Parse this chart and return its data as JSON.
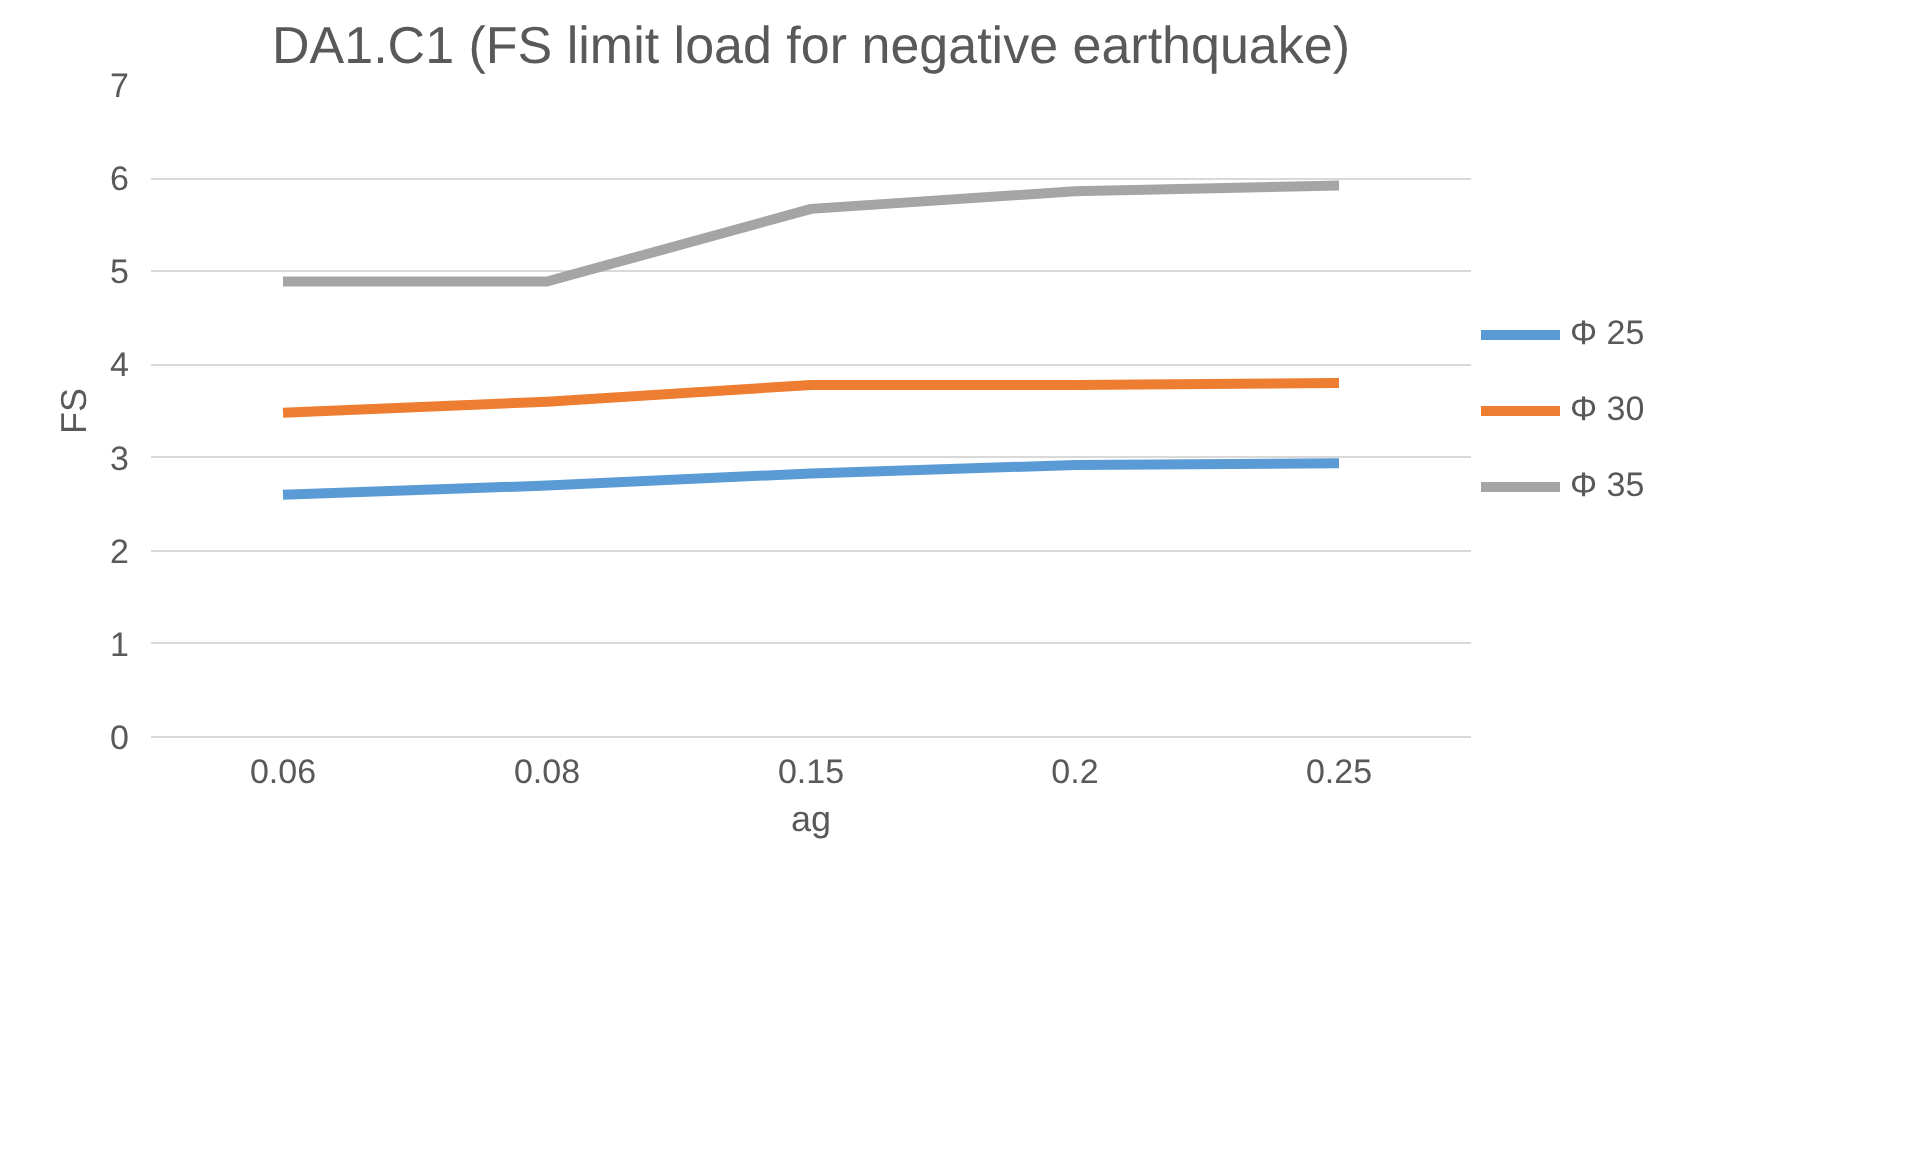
{
  "chart_data": {
    "type": "line",
    "title": "DA1.C1 (FS limit load for negative earthquake)",
    "xlabel": "ag",
    "ylabel": "FS",
    "categories": [
      "0.06",
      "0.08",
      "0.15",
      "0.2",
      "0.25"
    ],
    "series": [
      {
        "name": "Φ 25",
        "color": "#5b9bd5",
        "values": [
          2.6,
          2.7,
          2.83,
          2.92,
          2.94
        ]
      },
      {
        "name": "Φ 30",
        "color": "#ed7d31",
        "values": [
          3.48,
          3.6,
          3.78,
          3.78,
          3.8
        ]
      },
      {
        "name": "Φ 35",
        "color": "#a5a5a5",
        "values": [
          4.89,
          4.89,
          5.67,
          5.86,
          5.92
        ]
      }
    ],
    "ylim": [
      0,
      7
    ],
    "yticks": [
      0,
      1,
      2,
      3,
      4,
      5,
      6,
      7
    ],
    "grid": "y",
    "legend": "right",
    "marker": "none",
    "line_style": "solid"
  }
}
